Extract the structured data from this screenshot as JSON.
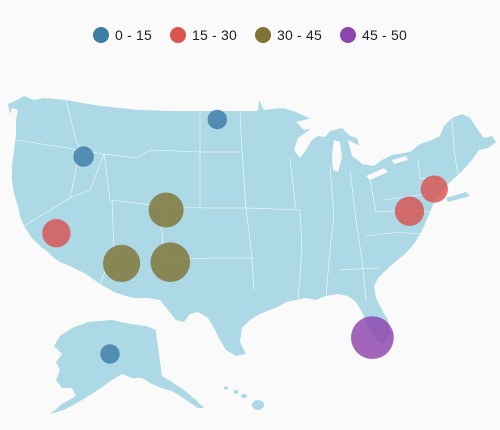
{
  "legend": {
    "items": [
      {
        "label": "0 - 15",
        "color": "#3a7ea6"
      },
      {
        "label": "15 - 30",
        "color": "#d9534f"
      },
      {
        "label": "30 - 45",
        "color": "#7f7433"
      },
      {
        "label": "45 - 50",
        "color": "#8e44ad"
      }
    ]
  },
  "map": {
    "land_color": "#add8e6",
    "border_color": "#ffffff",
    "bubble_opacity": 0.82,
    "bubbles": [
      {
        "location": "Oregon / Idaho",
        "lon": -116.5,
        "lat": 43.6,
        "value": 8,
        "range": 0
      },
      {
        "location": "North Dakota",
        "lon": -100.3,
        "lat": 46.8,
        "value": 6,
        "range": 0
      },
      {
        "location": "Alaska",
        "lon": -150.0,
        "lat": 64.0,
        "value": 6,
        "range": 0
      },
      {
        "location": "California",
        "lon": -119.8,
        "lat": 37.0,
        "value": 22,
        "range": 1
      },
      {
        "location": "Washington DC",
        "lon": -77.0,
        "lat": 38.9,
        "value": 24,
        "range": 1
      },
      {
        "location": "New York",
        "lon": -74.0,
        "lat": 40.8,
        "value": 20,
        "range": 1
      },
      {
        "location": "Colorado",
        "lon": -106.5,
        "lat": 39.0,
        "value": 34,
        "range": 2
      },
      {
        "location": "Arizona",
        "lon": -111.9,
        "lat": 34.4,
        "value": 38,
        "range": 2
      },
      {
        "location": "New Mexico",
        "lon": -106.0,
        "lat": 34.5,
        "value": 42,
        "range": 2
      },
      {
        "location": "Florida",
        "lon": -81.5,
        "lat": 28.0,
        "value": 48,
        "range": 3
      }
    ]
  }
}
